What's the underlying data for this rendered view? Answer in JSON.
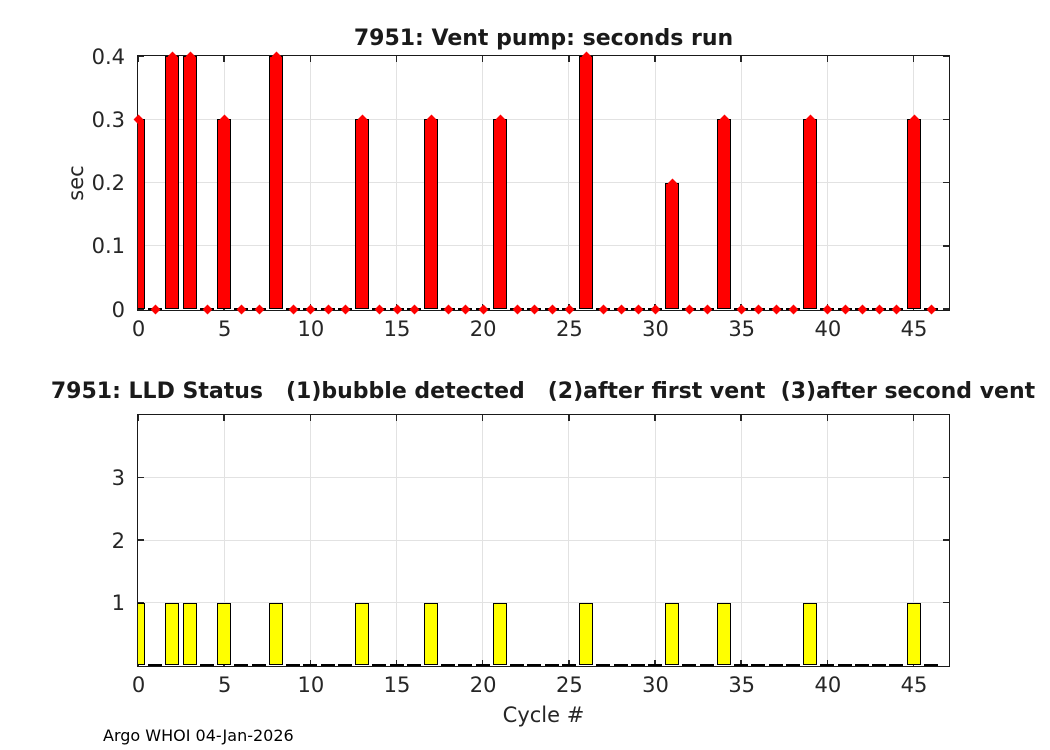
{
  "footer": "Argo WHOI 04-Jan-2026",
  "chart_data": [
    {
      "id": "vent-pump-seconds",
      "type": "bar",
      "title": "7951: Vent pump: seconds run",
      "xlabel": "",
      "ylabel": "sec",
      "bar_color": "#ff0000",
      "bar_edge_color": "#000000",
      "marker": {
        "shape": "diamond",
        "color": "#ff0000"
      },
      "grid": true,
      "legend": "none",
      "xlim": [
        0,
        47
      ],
      "ylim": [
        0,
        0.4
      ],
      "xticks": [
        0,
        5,
        10,
        15,
        20,
        25,
        30,
        35,
        40,
        45
      ],
      "yticks": [
        0,
        0.1,
        0.2,
        0.3,
        0.4
      ],
      "x": [
        0,
        1,
        2,
        3,
        4,
        5,
        6,
        7,
        8,
        9,
        10,
        11,
        12,
        13,
        14,
        15,
        16,
        17,
        18,
        19,
        20,
        21,
        22,
        23,
        24,
        25,
        26,
        27,
        28,
        29,
        30,
        31,
        32,
        33,
        34,
        35,
        36,
        37,
        38,
        39,
        40,
        41,
        42,
        43,
        44,
        45,
        46
      ],
      "values": [
        0.3,
        0,
        0.4,
        0.4,
        0,
        0.3,
        0,
        0,
        0.4,
        0,
        0,
        0,
        0,
        0.3,
        0,
        0,
        0,
        0.3,
        0,
        0,
        0,
        0.3,
        0,
        0,
        0,
        0,
        0.4,
        0,
        0,
        0,
        0,
        0.2,
        0,
        0,
        0.3,
        0,
        0,
        0,
        0,
        0.3,
        0,
        0,
        0,
        0,
        0,
        0.3,
        0
      ]
    },
    {
      "id": "lld-status",
      "type": "bar",
      "title": "7951: LLD Status   (1)bubble detected   (2)after first vent  (3)after second vent",
      "xlabel": "Cycle #",
      "ylabel": "",
      "bar_color": "#ffff00",
      "bar_edge_color": "#000000",
      "marker": null,
      "grid": true,
      "legend": "none",
      "xlim": [
        0,
        47
      ],
      "ylim": [
        0,
        4
      ],
      "xticks": [
        0,
        5,
        10,
        15,
        20,
        25,
        30,
        35,
        40,
        45
      ],
      "yticks": [
        1,
        2,
        3
      ],
      "x": [
        0,
        1,
        2,
        3,
        4,
        5,
        6,
        7,
        8,
        9,
        10,
        11,
        12,
        13,
        14,
        15,
        16,
        17,
        18,
        19,
        20,
        21,
        22,
        23,
        24,
        25,
        26,
        27,
        28,
        29,
        30,
        31,
        32,
        33,
        34,
        35,
        36,
        37,
        38,
        39,
        40,
        41,
        42,
        43,
        44,
        45,
        46
      ],
      "values": [
        1,
        0,
        1,
        1,
        0,
        1,
        0,
        0,
        1,
        0,
        0,
        0,
        0,
        1,
        0,
        0,
        0,
        1,
        0,
        0,
        0,
        1,
        0,
        0,
        0,
        0,
        1,
        0,
        0,
        0,
        0,
        1,
        0,
        0,
        1,
        0,
        0,
        0,
        0,
        1,
        0,
        0,
        0,
        0,
        0,
        1,
        0
      ]
    }
  ]
}
